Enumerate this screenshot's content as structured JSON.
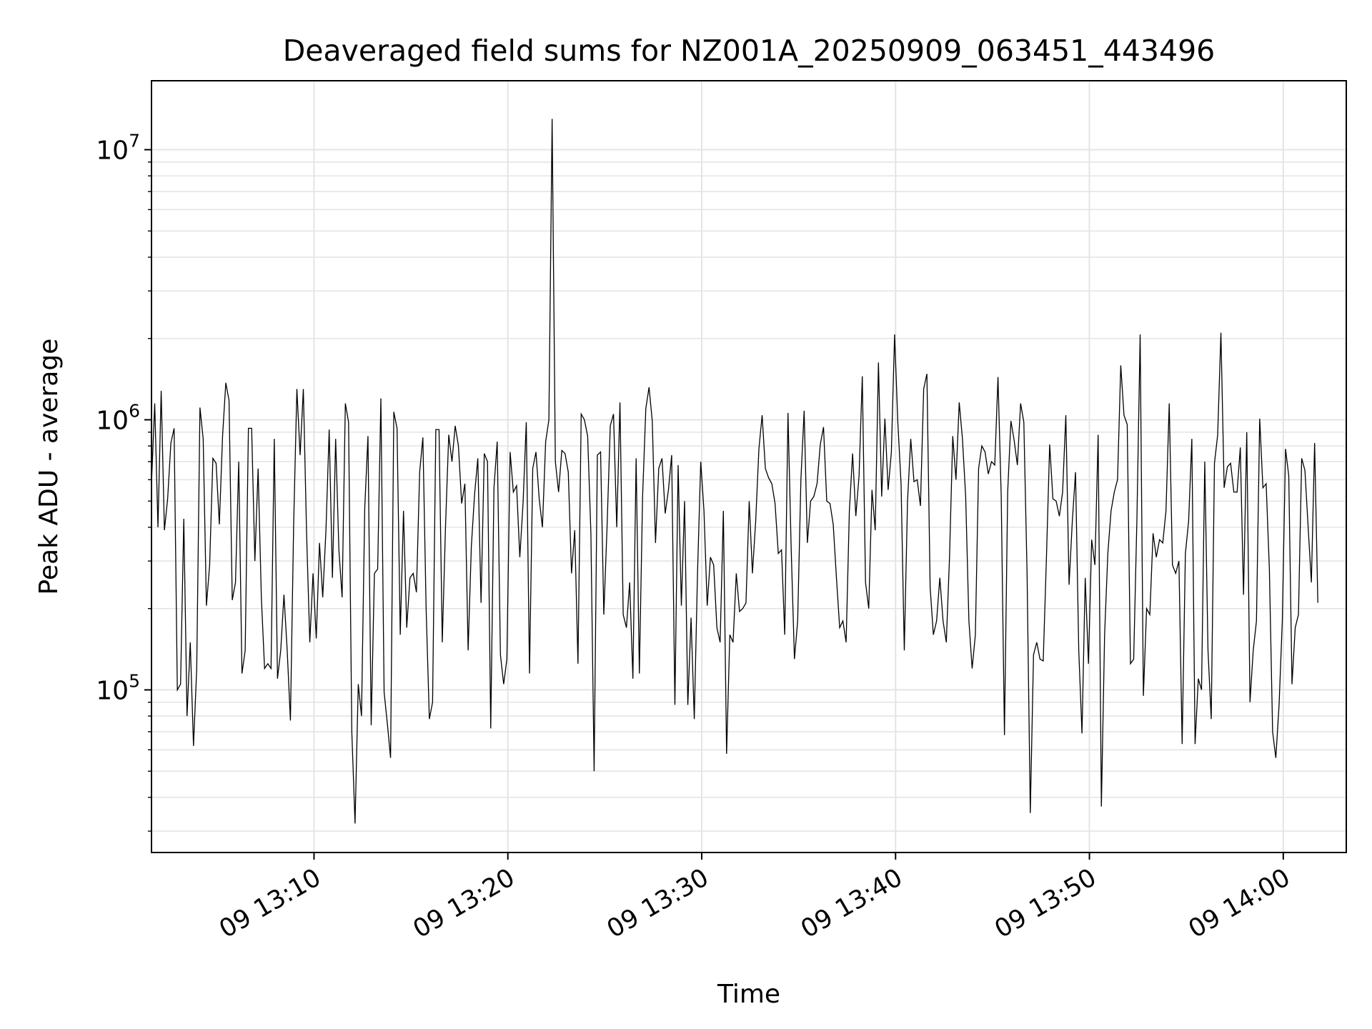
{
  "chart_data": {
    "type": "line",
    "title": "Deaveraged field sums for NZ001A_20250909_063451_443496",
    "xlabel": "Time",
    "ylabel": "Peak ADU - average",
    "yscale": "log",
    "ylim": [
      25000,
      18000000
    ],
    "xlim": [
      "2025-09-09 13:01:37",
      "2025-09-09 14:03:15"
    ],
    "xticks": [
      "09 13:10",
      "09 13:20",
      "09 13:30",
      "09 13:40",
      "09 13:50",
      "09 14:00"
    ],
    "yticks": [
      {
        "base": "10",
        "exp": "5",
        "value": 100000
      },
      {
        "base": "10",
        "exp": "6",
        "value": 1000000
      },
      {
        "base": "10",
        "exp": "7",
        "value": 10000000
      }
    ],
    "grid": true,
    "line_color": "#000000",
    "x_start": "2025-09-09 13:01:37",
    "x_step_seconds": 10,
    "values": [
      580000,
      1150000,
      400000,
      1280000,
      390000,
      510000,
      820000,
      930000,
      100000,
      105000,
      430000,
      80000,
      150000,
      62000,
      120000,
      1110000,
      850000,
      205000,
      290000,
      720000,
      690000,
      410000,
      870000,
      1370000,
      1180000,
      215000,
      250000,
      700000,
      115000,
      140000,
      930000,
      930000,
      300000,
      660000,
      220000,
      120000,
      125000,
      120000,
      850000,
      110000,
      140000,
      225000,
      140000,
      77000,
      410000,
      1300000,
      740000,
      1300000,
      380000,
      150000,
      270000,
      155000,
      350000,
      220000,
      390000,
      920000,
      260000,
      850000,
      330000,
      220000,
      1150000,
      980000,
      70000,
      32000,
      105000,
      80000,
      470000,
      870000,
      74000,
      270000,
      280000,
      1200000,
      98000,
      75000,
      56000,
      1070000,
      930000,
      160000,
      460000,
      170000,
      260000,
      270000,
      230000,
      640000,
      860000,
      200000,
      78000,
      90000,
      920000,
      920000,
      150000,
      400000,
      880000,
      700000,
      950000,
      800000,
      490000,
      580000,
      140000,
      340000,
      530000,
      720000,
      210000,
      750000,
      700000,
      72000,
      560000,
      830000,
      135000,
      105000,
      130000,
      760000,
      540000,
      570000,
      310000,
      490000,
      980000,
      115000,
      660000,
      760000,
      510000,
      400000,
      830000,
      1000000,
      13000000,
      700000,
      540000,
      770000,
      750000,
      640000,
      270000,
      390000,
      125000,
      1050000,
      1000000,
      870000,
      380000,
      50000,
      740000,
      760000,
      190000,
      400000,
      950000,
      1050000,
      400000,
      1160000,
      190000,
      170000,
      250000,
      110000,
      720000,
      115000,
      520000,
      1100000,
      1320000,
      990000,
      350000,
      660000,
      720000,
      450000,
      550000,
      740000,
      88000,
      680000,
      205000,
      500000,
      88000,
      185000,
      78000,
      270000,
      700000,
      460000,
      205000,
      310000,
      290000,
      170000,
      150000,
      460000,
      58000,
      160000,
      150000,
      270000,
      195000,
      200000,
      210000,
      500000,
      270000,
      420000,
      780000,
      1040000,
      660000,
      610000,
      580000,
      490000,
      320000,
      330000,
      160000,
      1060000,
      330000,
      130000,
      180000,
      600000,
      1080000,
      350000,
      500000,
      520000,
      580000,
      810000,
      940000,
      500000,
      490000,
      410000,
      260000,
      170000,
      180000,
      150000,
      460000,
      750000,
      440000,
      620000,
      1450000,
      250000,
      200000,
      550000,
      390000,
      1630000,
      520000,
      1010000,
      550000,
      760000,
      2070000,
      980000,
      580000,
      140000,
      500000,
      850000,
      590000,
      600000,
      480000,
      1300000,
      1480000,
      240000,
      160000,
      180000,
      260000,
      180000,
      150000,
      310000,
      870000,
      600000,
      1160000,
      850000,
      520000,
      180000,
      120000,
      160000,
      660000,
      800000,
      760000,
      630000,
      700000,
      680000,
      1440000,
      520000,
      68000,
      540000,
      990000,
      840000,
      680000,
      1150000,
      980000,
      270000,
      35000,
      135000,
      150000,
      130000,
      128000,
      310000,
      810000,
      510000,
      500000,
      440000,
      540000,
      1040000,
      245000,
      420000,
      640000,
      140000,
      69000,
      260000,
      125000,
      360000,
      290000,
      880000,
      37000,
      160000,
      320000,
      460000,
      540000,
      600000,
      1590000,
      1040000,
      960000,
      125000,
      130000,
      430000,
      2070000,
      95000,
      200000,
      190000,
      380000,
      310000,
      360000,
      350000,
      460000,
      1150000,
      290000,
      270000,
      300000,
      63000,
      320000,
      420000,
      850000,
      63000,
      110000,
      100000,
      700000,
      140000,
      78000,
      690000,
      880000,
      2100000,
      560000,
      670000,
      690000,
      540000,
      540000,
      790000,
      225000,
      900000,
      90000,
      140000,
      180000,
      1010000,
      560000,
      580000,
      280000,
      70000,
      56000,
      88000,
      180000,
      780000,
      620000,
      105000,
      170000,
      190000,
      720000,
      650000,
      400000,
      250000,
      820000,
      210000
    ]
  }
}
